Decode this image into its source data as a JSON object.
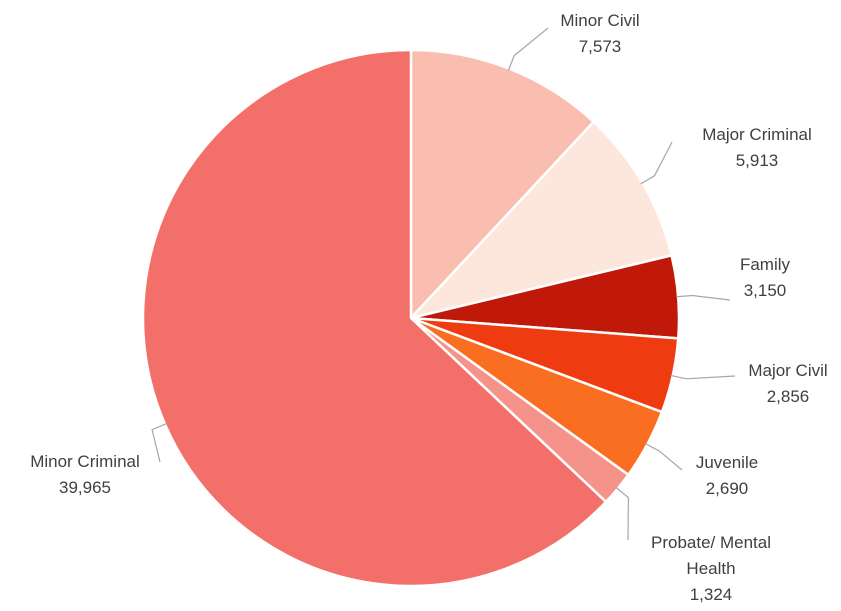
{
  "chart_data": {
    "type": "pie",
    "title": "",
    "start_angle_deg": 0,
    "direction": "clockwise",
    "slices": [
      {
        "name": "Minor Civil",
        "label_lines": [
          "Minor Civil"
        ],
        "value": 7573,
        "value_label": "7,573",
        "color": "#f9beb0"
      },
      {
        "name": "Major Criminal",
        "label_lines": [
          "Major Criminal"
        ],
        "value": 5913,
        "value_label": "5,913",
        "color": "#fde6dc"
      },
      {
        "name": "Family",
        "label_lines": [
          "Family"
        ],
        "value": 3150,
        "value_label": "3,150",
        "color": "#c0190a"
      },
      {
        "name": "Major Civil",
        "label_lines": [
          "Major Civil"
        ],
        "value": 2856,
        "value_label": "2,856",
        "color": "#ee3b10"
      },
      {
        "name": "Juvenile",
        "label_lines": [
          "Juvenile"
        ],
        "value": 2690,
        "value_label": "2,690",
        "color": "#fa6e21"
      },
      {
        "name": "Probate/ Mental Health",
        "label_lines": [
          "Probate/ Mental",
          "Health"
        ],
        "value": 1324,
        "value_label": "1,324",
        "color": "#f5928a"
      },
      {
        "name": "Minor Criminal",
        "label_lines": [
          "Minor Criminal"
        ],
        "value": 39965,
        "value_label": "39,965",
        "color": "#f3706a"
      }
    ]
  }
}
